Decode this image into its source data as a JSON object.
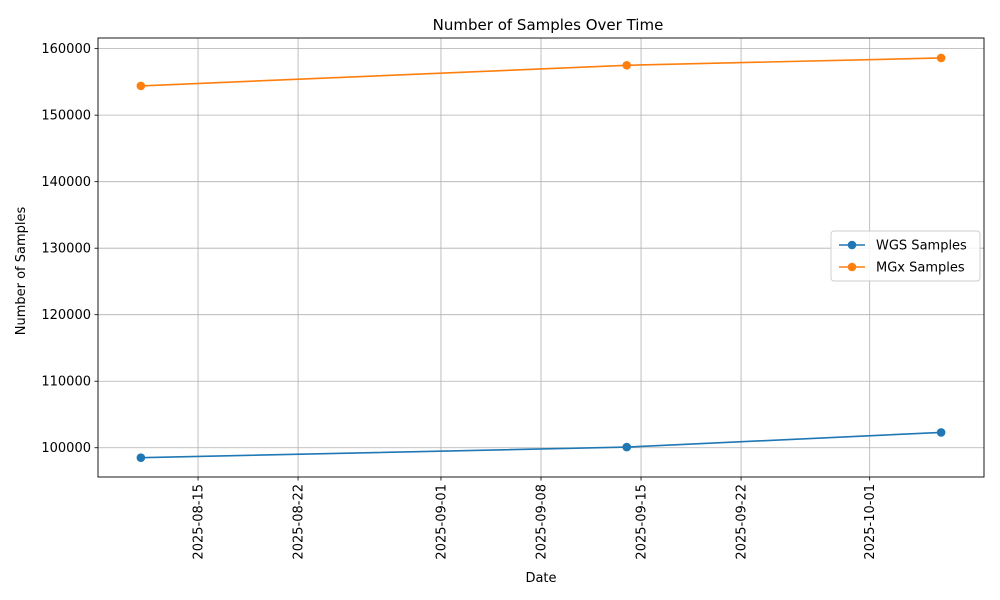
{
  "chart_data": {
    "type": "line",
    "title": "Number of Samples Over Time",
    "xlabel": "Date",
    "ylabel": "Number of Samples",
    "x": [
      "2025-08-11",
      "2025-09-14",
      "2025-10-06"
    ],
    "series": [
      {
        "name": "WGS Samples",
        "color": "#1f77b4",
        "marker": "circle",
        "values": [
          98500,
          100100,
          102300
        ]
      },
      {
        "name": "MGx Samples",
        "color": "#ff7f0e",
        "marker": "circle",
        "values": [
          154400,
          157500,
          158600
        ]
      }
    ],
    "x_ticks": [
      "2025-08-15",
      "2025-08-22",
      "2025-09-01",
      "2025-09-08",
      "2025-09-15",
      "2025-09-22",
      "2025-10-01"
    ],
    "xlim": [
      "2025-08-08",
      "2025-10-09"
    ],
    "y_ticks": [
      100000,
      110000,
      120000,
      130000,
      140000,
      150000,
      160000
    ],
    "ylim": [
      95600,
      161600
    ],
    "grid": true,
    "legend_position": "center-right",
    "x_tick_rotation": "vertical"
  }
}
